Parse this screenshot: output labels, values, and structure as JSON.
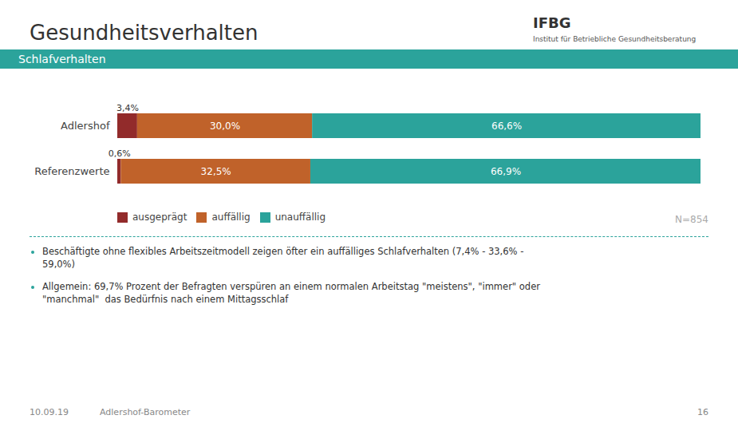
{
  "chart_data": {
    "type": "bar",
    "orientation": "horizontal",
    "stacked": true,
    "data_labels": true,
    "legend": "bottom",
    "grid": false,
    "tick_labels": "y",
    "title": "Gesundheitsverhalten",
    "subtitle": "Schlafverhalten",
    "categories": [
      "Adlershof",
      "Referenzwerte"
    ],
    "series": [
      {
        "name": "ausgeprägt",
        "color": "#922b2b",
        "values": [
          3.4,
          0.6
        ],
        "value_labels": [
          "3,4%",
          "0,6%"
        ]
      },
      {
        "name": "auffällig",
        "color": "#c0622a",
        "values": [
          30.0,
          32.5
        ],
        "value_labels": [
          "30,0%",
          "32,5%"
        ]
      },
      {
        "name": "unauffällig",
        "color": "#2ba39b",
        "values": [
          66.6,
          66.9
        ],
        "value_labels": [
          "66,6%",
          "66,9%"
        ]
      }
    ],
    "xlim": [
      0,
      100
    ],
    "annotations": [
      "IFBG",
      "Institut für Betriebliche Gesundheitsberatung",
      "N=854",
      "Beschäftigte ohne flexibles Arbeitszeitmodell zeigen öfter ein auffälliges Schlafverhalten (7,4% - 33,6% -\n59,0%)",
      "Allgemein: 69,7% Prozent der Befragten verspüren an einem normalen Arbeitstag \"meistens\", \"immer\" oder\n\"manchmal\"  das Bedürfnis nach einem Mittagsschlaf",
      "10.09.19",
      "Adlershof-Barometer",
      "16"
    ]
  }
}
